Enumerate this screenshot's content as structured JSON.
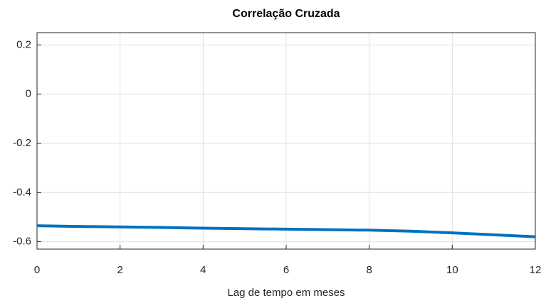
{
  "chart_data": {
    "type": "line",
    "title": "Correlação Cruzada",
    "x_label": "Lag de tempo em meses",
    "x": [
      0,
      1,
      2,
      3,
      4,
      5,
      6,
      7,
      8,
      9,
      10,
      11,
      12
    ],
    "series": [
      {
        "name": "Correlação Cruzada",
        "color": "#0072bd",
        "values": [
          -0.535,
          -0.538,
          -0.54,
          -0.542,
          -0.545,
          -0.547,
          -0.549,
          -0.551,
          -0.553,
          -0.557,
          -0.564,
          -0.572,
          -0.58
        ]
      }
    ],
    "xlim": [
      0,
      12
    ],
    "xticks": [
      0,
      2,
      4,
      6,
      8,
      10,
      12
    ],
    "ylim": [
      -0.63,
      0.25
    ],
    "yticks": [
      -0.6,
      -0.4,
      -0.2,
      0,
      0.2
    ],
    "grid": true
  }
}
